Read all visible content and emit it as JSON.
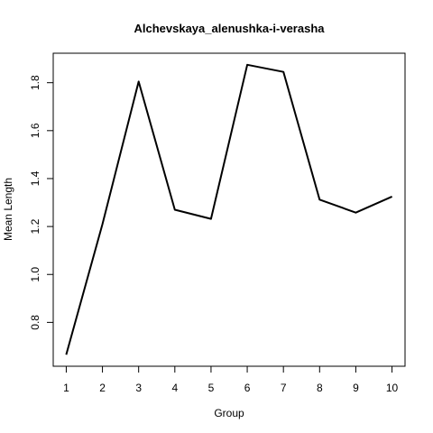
{
  "chart_data": {
    "type": "line",
    "title": "Alchevskaya_alenushka-i-verasha",
    "xlabel": "Group",
    "ylabel": "Mean Length",
    "x": [
      1,
      2,
      3,
      4,
      5,
      6,
      7,
      8,
      9,
      10
    ],
    "y": [
      0.665,
      1.21,
      1.805,
      1.27,
      1.232,
      1.875,
      1.845,
      1.312,
      1.258,
      1.325
    ],
    "xlim": [
      0.64,
      10.36
    ],
    "ylim": [
      0.617,
      1.923
    ],
    "xticks": [
      1,
      2,
      3,
      4,
      5,
      6,
      7,
      8,
      9,
      10
    ],
    "xtick_labels": [
      "1",
      "2",
      "3",
      "4",
      "5",
      "6",
      "7",
      "8",
      "9",
      "10"
    ],
    "yticks": [
      0.8,
      1.0,
      1.2,
      1.4,
      1.6,
      1.8
    ],
    "ytick_labels": [
      "0.8",
      "1.0",
      "1.2",
      "1.4",
      "1.6",
      "1.8"
    ],
    "grid": false,
    "line_color": "#000000"
  }
}
